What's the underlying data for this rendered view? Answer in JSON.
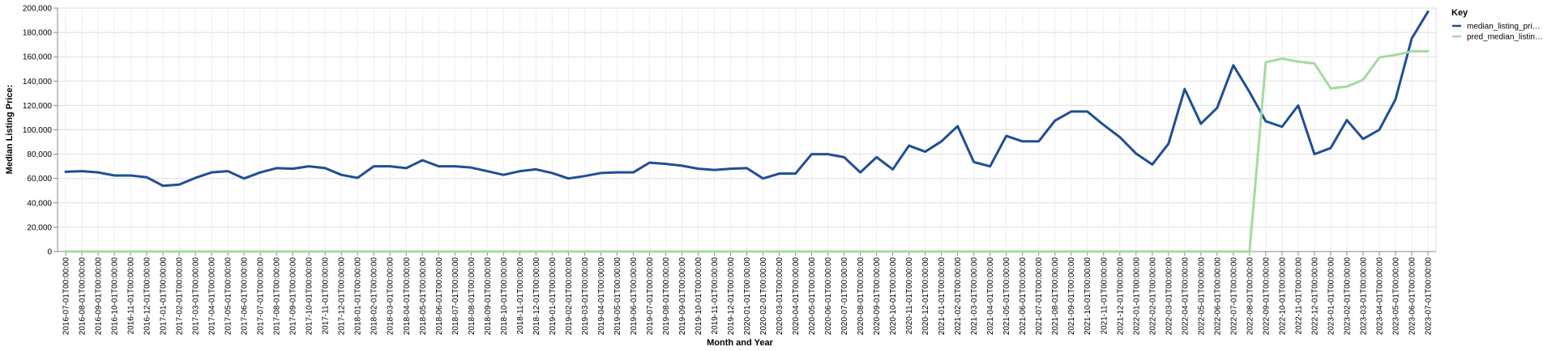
{
  "chart_data": {
    "type": "line",
    "xlabel": "Month and Year",
    "ylabel": "Median Listing Price:",
    "ylim": [
      0,
      200000
    ],
    "y_ticks": [
      0,
      20000,
      40000,
      60000,
      80000,
      100000,
      120000,
      140000,
      160000,
      180000,
      200000
    ],
    "y_tick_labels": [
      "0",
      "20,000",
      "40,000",
      "60,000",
      "80,000",
      "100,000",
      "120,000",
      "140,000",
      "160,000",
      "180,000",
      "200,000"
    ],
    "grid": true,
    "legend": {
      "title": "Key",
      "placement": "top-right"
    },
    "x": [
      "2016-07-01T00:00:00",
      "2016-08-01T00:00:00",
      "2016-09-01T00:00:00",
      "2016-10-01T00:00:00",
      "2016-11-01T00:00:00",
      "2016-12-01T00:00:00",
      "2017-01-01T00:00:00",
      "2017-02-01T00:00:00",
      "2017-03-01T00:00:00",
      "2017-04-01T00:00:00",
      "2017-05-01T00:00:00",
      "2017-06-01T00:00:00",
      "2017-07-01T00:00:00",
      "2017-08-01T00:00:00",
      "2017-09-01T00:00:00",
      "2017-10-01T00:00:00",
      "2017-11-01T00:00:00",
      "2017-12-01T00:00:00",
      "2018-01-01T00:00:00",
      "2018-02-01T00:00:00",
      "2018-03-01T00:00:00",
      "2018-04-01T00:00:00",
      "2018-05-01T00:00:00",
      "2018-06-01T00:00:00",
      "2018-07-01T00:00:00",
      "2018-08-01T00:00:00",
      "2018-09-01T00:00:00",
      "2018-10-01T00:00:00",
      "2018-11-01T00:00:00",
      "2018-12-01T00:00:00",
      "2019-01-01T00:00:00",
      "2019-02-01T00:00:00",
      "2019-03-01T00:00:00",
      "2019-04-01T00:00:00",
      "2019-05-01T00:00:00",
      "2019-06-01T00:00:00",
      "2019-07-01T00:00:00",
      "2019-08-01T00:00:00",
      "2019-09-01T00:00:00",
      "2019-10-01T00:00:00",
      "2019-11-01T00:00:00",
      "2019-12-01T00:00:00",
      "2020-01-01T00:00:00",
      "2020-02-01T00:00:00",
      "2020-03-01T00:00:00",
      "2020-04-01T00:00:00",
      "2020-05-01T00:00:00",
      "2020-06-01T00:00:00",
      "2020-07-01T00:00:00",
      "2020-08-01T00:00:00",
      "2020-09-01T00:00:00",
      "2020-10-01T00:00:00",
      "2020-11-01T00:00:00",
      "2020-12-01T00:00:00",
      "2021-01-01T00:00:00",
      "2021-02-01T00:00:00",
      "2021-03-01T00:00:00",
      "2021-04-01T00:00:00",
      "2021-05-01T00:00:00",
      "2021-06-01T00:00:00",
      "2021-07-01T00:00:00",
      "2021-08-01T00:00:00",
      "2021-09-01T00:00:00",
      "2021-10-01T00:00:00",
      "2021-11-01T00:00:00",
      "2021-12-01T00:00:00",
      "2022-01-01T00:00:00",
      "2022-02-01T00:00:00",
      "2022-03-01T00:00:00",
      "2022-04-01T00:00:00",
      "2022-05-01T00:00:00",
      "2022-06-01T00:00:00",
      "2022-07-01T00:00:00",
      "2022-08-01T00:00:00",
      "2022-09-01T00:00:00",
      "2022-10-01T00:00:00",
      "2022-11-01T00:00:00",
      "2022-12-01T00:00:00",
      "2023-01-01T00:00:00",
      "2023-02-01T00:00:00",
      "2023-03-01T00:00:00",
      "2023-04-01T00:00:00",
      "2023-05-01T00:00:00",
      "2023-06-01T00:00:00",
      "2023-07-01T00:00:00"
    ],
    "series": [
      {
        "name": "median_listing_pri…",
        "color": "#1f4e96",
        "values": [
          65500,
          66000,
          65000,
          62500,
          62500,
          61000,
          54000,
          55000,
          60500,
          65000,
          66000,
          60000,
          65000,
          68500,
          68000,
          70000,
          68500,
          63000,
          60500,
          70000,
          70000,
          68500,
          75000,
          70000,
          70000,
          69000,
          66000,
          63000,
          66000,
          67500,
          64500,
          60000,
          62000,
          64500,
          65000,
          65000,
          73000,
          72000,
          70500,
          68000,
          67000,
          68000,
          68500,
          60000,
          64000,
          64000,
          80000,
          80000,
          77500,
          65000,
          77500,
          67500,
          87000,
          82000,
          90500,
          103000,
          73500,
          70000,
          95000,
          90500,
          90500,
          107500,
          115000,
          115000,
          104000,
          94000,
          80500,
          71500,
          88500,
          133500,
          105000,
          118000,
          153000,
          131000,
          107000,
          102500,
          120000,
          80000,
          85000,
          108000,
          92500,
          100000,
          125000,
          175000,
          197000
        ]
      },
      {
        "name": "pred_median_listin…",
        "color": "#a3dba0",
        "values": [
          0,
          0,
          0,
          0,
          0,
          0,
          0,
          0,
          0,
          0,
          0,
          0,
          0,
          0,
          0,
          0,
          0,
          0,
          0,
          0,
          0,
          0,
          0,
          0,
          0,
          0,
          0,
          0,
          0,
          0,
          0,
          0,
          0,
          0,
          0,
          0,
          0,
          0,
          0,
          0,
          0,
          0,
          0,
          0,
          0,
          0,
          0,
          0,
          0,
          0,
          0,
          0,
          0,
          0,
          0,
          0,
          0,
          0,
          0,
          0,
          0,
          0,
          0,
          0,
          0,
          0,
          0,
          0,
          0,
          0,
          0,
          0,
          0,
          0,
          155500,
          158500,
          156000,
          154500,
          134000,
          135500,
          141000,
          159500,
          161500,
          164500,
          164500
        ]
      }
    ]
  }
}
